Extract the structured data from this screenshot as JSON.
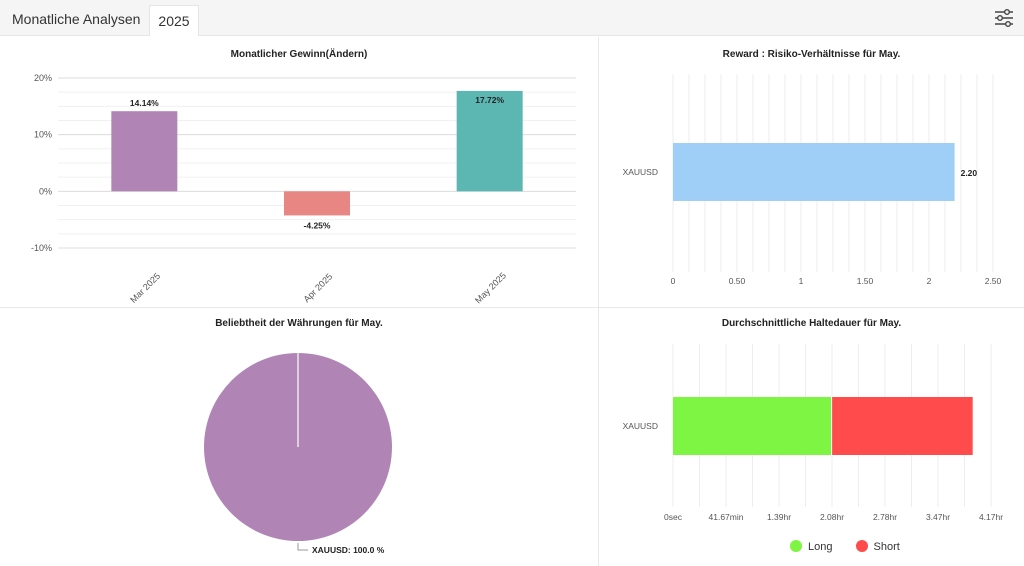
{
  "header": {
    "title": "Monatliche Analysen",
    "tab_label": "2025",
    "settings_icon": "sliders-icon"
  },
  "monthly_profit": {
    "title": "Monatlicher Gewinn(Ändern)",
    "chart_data": {
      "type": "bar",
      "categories": [
        "Mar 2025",
        "Apr 2025",
        "May 2025"
      ],
      "values": [
        14.14,
        -4.25,
        17.72
      ],
      "value_labels": [
        "14.14%",
        "-4.25%",
        "17.72%"
      ],
      "colors": [
        "#b085b5",
        "#e88684",
        "#5cb7b3"
      ],
      "ylim": [
        -10,
        20
      ],
      "yticks": [
        "-10%",
        "0%",
        "10%",
        "20%"
      ],
      "grid": true
    }
  },
  "reward_risk": {
    "title": "Reward : Risiko-Verhältnisse für May.",
    "chart_data": {
      "type": "bar",
      "orientation": "horizontal",
      "categories": [
        "XAUUSD"
      ],
      "values": [
        2.2
      ],
      "value_labels": [
        "2.20"
      ],
      "color": "#9fcff6",
      "xlim": [
        0,
        2.5
      ],
      "xticks": [
        "0",
        "0.50",
        "1",
        "1.50",
        "2",
        "2.50"
      ],
      "grid": true
    }
  },
  "currency_popularity": {
    "title": "Beliebtheit der Währungen für May.",
    "chart_data": {
      "type": "pie",
      "labels": [
        "XAUUSD"
      ],
      "values": [
        100.0
      ],
      "slice_labels": [
        "XAUUSD: 100.0 %"
      ],
      "colors": [
        "#b085b5"
      ]
    }
  },
  "holding_time": {
    "title": "Durchschnittliche Haltedauer für May.",
    "chart_data": {
      "type": "bar",
      "orientation": "horizontal",
      "stacked": true,
      "categories": [
        "XAUUSD"
      ],
      "series": [
        {
          "name": "Long",
          "values_hours": [
            2.08
          ],
          "color": "#7ef542"
        },
        {
          "name": "Short",
          "values_hours": [
            1.85
          ],
          "color": "#ff4b4b"
        }
      ],
      "xlim_hours": [
        0,
        4.17
      ],
      "xticks": [
        "0sec",
        "41.67min",
        "1.39hr",
        "2.08hr",
        "2.78hr",
        "3.47hr",
        "4.17hr"
      ],
      "grid": true
    },
    "legend": {
      "long": "Long",
      "short": "Short"
    }
  }
}
